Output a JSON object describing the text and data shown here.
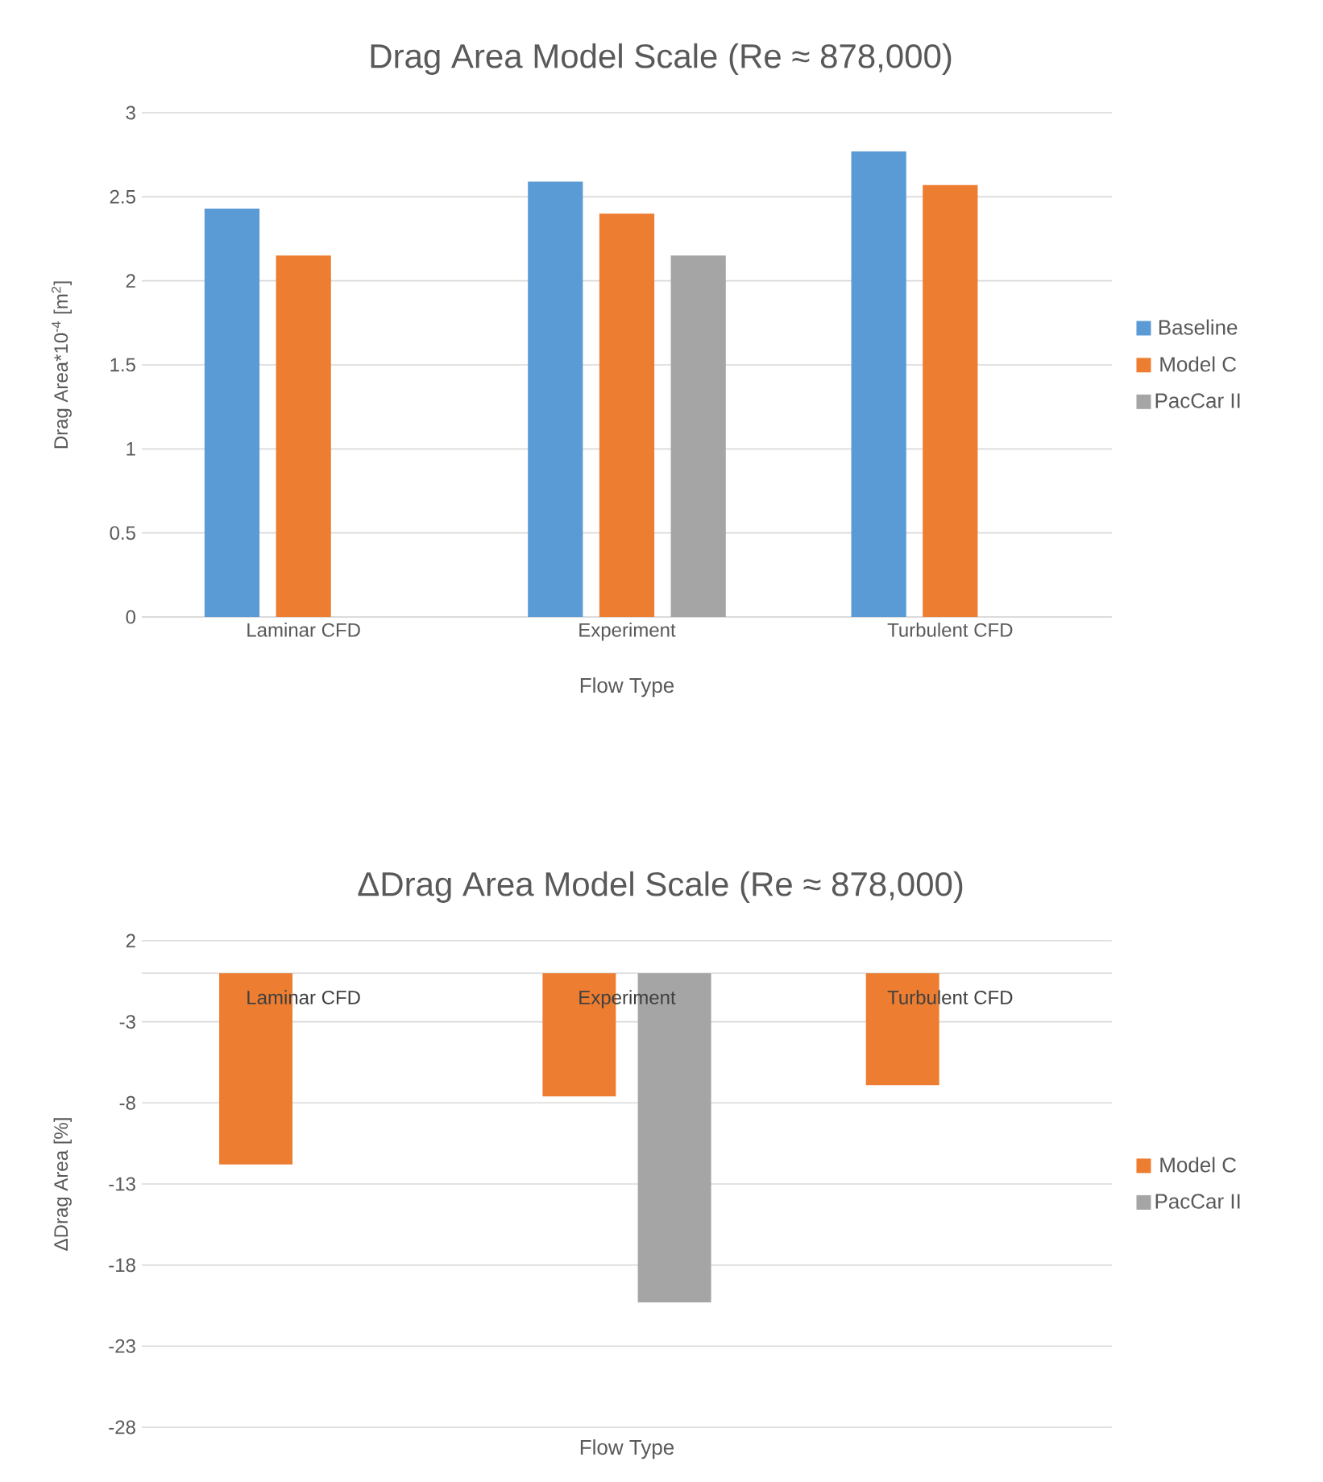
{
  "chart_data": [
    {
      "type": "bar",
      "title": "Drag Area Model Scale (Re ≈ 878,000)",
      "xlabel": "Flow Type",
      "ylabel": "Drag Area*10$^{-4}$ [m$^{2}$]",
      "categories": [
        "Laminar CFD",
        "Experiment",
        "Turbulent CFD"
      ],
      "series": [
        {
          "name": "Baseline",
          "color": "#5b9bd5",
          "values": [
            2.43,
            2.59,
            2.77
          ]
        },
        {
          "name": "Model C",
          "color": "#ed7d31",
          "values": [
            2.15,
            2.4,
            2.57
          ]
        },
        {
          "name": "PacCar II",
          "color": "#a5a5a5",
          "values": [
            null,
            2.15,
            null
          ]
        }
      ],
      "ylim": [
        0,
        3
      ],
      "yticks": [
        0,
        0.5,
        1,
        1.5,
        2,
        2.5,
        3
      ],
      "grid": "y",
      "legend": "right"
    },
    {
      "type": "bar",
      "title": "ΔDrag Area Model Scale (Re ≈ 878,000)",
      "xlabel": "Flow Type",
      "ylabel": "ΔDrag Area  [%]",
      "categories": [
        "Laminar CFD",
        "Experiment",
        "Turbulent CFD"
      ],
      "series": [
        {
          "name": "Model C",
          "color": "#ed7d31",
          "values": [
            -11.8,
            -7.6,
            -6.9
          ]
        },
        {
          "name": "PacCar II",
          "color": "#a5a5a5",
          "values": [
            null,
            -20.3,
            null
          ]
        }
      ],
      "ylim": [
        -28,
        2
      ],
      "yticks": [
        2,
        -3,
        -8,
        -13,
        -18,
        -23,
        -28
      ],
      "grid": "y",
      "legend": "right"
    }
  ]
}
